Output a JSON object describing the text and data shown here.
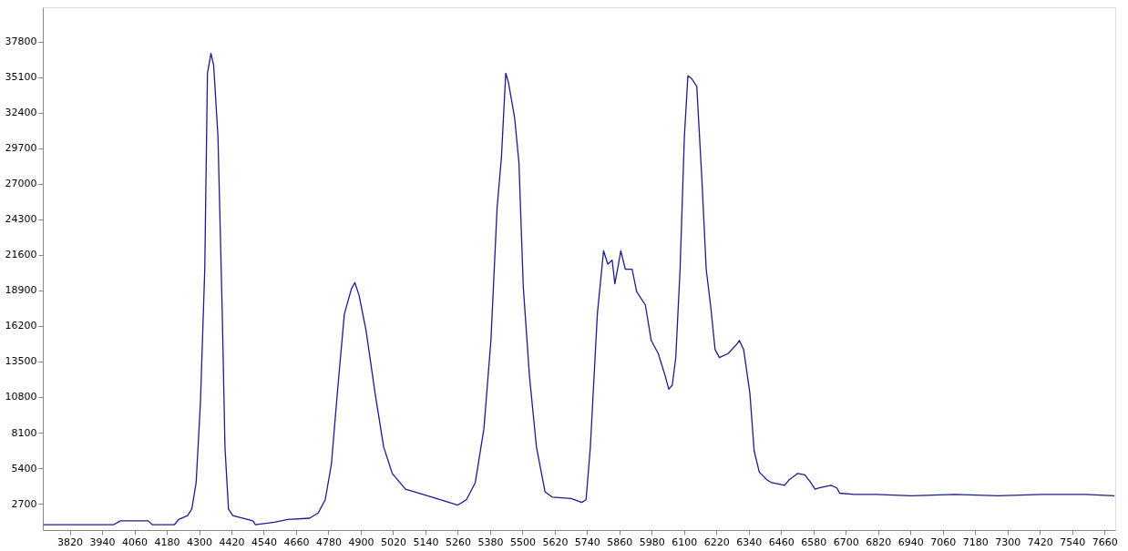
{
  "chart_data": {
    "type": "line",
    "x": [
      3723,
      3982,
      4008,
      4111,
      4127,
      4208,
      4224,
      4257,
      4273,
      4289,
      4305,
      4321,
      4331,
      4344,
      4354,
      4370,
      4386,
      4396,
      4409,
      4425,
      4500,
      4509,
      4580,
      4629,
      4710,
      4742,
      4768,
      4791,
      4813,
      4839,
      4865,
      4878,
      4894,
      4920,
      4953,
      4985,
      5017,
      5066,
      5131,
      5195,
      5260,
      5292,
      5325,
      5357,
      5383,
      5406,
      5422,
      5438,
      5448,
      5471,
      5487,
      5503,
      5526,
      5552,
      5584,
      5610,
      5681,
      5720,
      5736,
      5752,
      5778,
      5801,
      5817,
      5833,
      5843,
      5859,
      5865,
      5882,
      5907,
      5924,
      5956,
      5978,
      6004,
      6030,
      6043,
      6056,
      6069,
      6085,
      6101,
      6114,
      6127,
      6147,
      6166,
      6182,
      6198,
      6215,
      6231,
      6263,
      6295,
      6305,
      6321,
      6344,
      6360,
      6379,
      6408,
      6425,
      6473,
      6489,
      6522,
      6548,
      6570,
      6586,
      6602,
      6645,
      6667,
      6677,
      6732,
      6813,
      6943,
      7105,
      7266,
      7428,
      7590,
      7697
    ],
    "series": [
      {
        "color": "#1c1c8c",
        "values": [
          1100,
          1100,
          1400,
          1400,
          1100,
          1100,
          1500,
          1800,
          2300,
          4300,
          10400,
          20500,
          35400,
          36900,
          36000,
          30600,
          17100,
          7000,
          2300,
          1800,
          1400,
          1100,
          1300,
          1500,
          1600,
          2000,
          3000,
          5700,
          11100,
          17100,
          19000,
          19500,
          18500,
          15800,
          11100,
          7000,
          5000,
          3800,
          3400,
          3000,
          2600,
          3000,
          4300,
          8400,
          15100,
          25200,
          29000,
          35400,
          34700,
          32000,
          28600,
          19200,
          12400,
          7000,
          3600,
          3200,
          3100,
          2800,
          3000,
          7000,
          17100,
          21900,
          20900,
          21200,
          19400,
          21200,
          21900,
          20500,
          20500,
          18800,
          17800,
          15100,
          14100,
          12400,
          11400,
          11700,
          13800,
          20500,
          30600,
          35200,
          35000,
          34400,
          27300,
          20500,
          17800,
          14400,
          13800,
          14100,
          14800,
          15100,
          14400,
          11100,
          6700,
          5100,
          4500,
          4300,
          4100,
          4500,
          5000,
          4900,
          4300,
          3800,
          3900,
          4100,
          3900,
          3500,
          3400,
          3400,
          3300,
          3400,
          3300,
          3400,
          3400,
          3300
        ]
      }
    ],
    "xlim": [
      3720,
      7700
    ],
    "ylim": [
      700,
      40400
    ],
    "xticks": [
      3820,
      3940,
      4060,
      4180,
      4300,
      4420,
      4540,
      4660,
      4780,
      4900,
      5020,
      5140,
      5260,
      5380,
      5500,
      5620,
      5740,
      5860,
      5980,
      6100,
      6220,
      6340,
      6460,
      6580,
      6700,
      6820,
      6940,
      7060,
      7180,
      7300,
      7420,
      7540,
      7660
    ],
    "yticks": [
      2700,
      5400,
      8100,
      10800,
      13500,
      16200,
      18900,
      21600,
      24300,
      27000,
      29700,
      32400,
      35100,
      37800
    ],
    "grid": false,
    "marker": "none",
    "line_style": "solid"
  }
}
